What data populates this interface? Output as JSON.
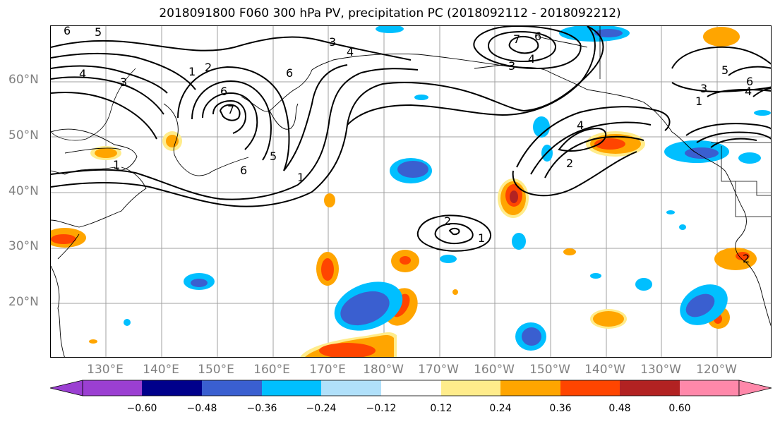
{
  "title": "2018091800 F060 300 hPa PV, precipitation PC (2018092112 - 2018092212)",
  "map": {
    "lat_labels": [
      "60°N",
      "50°N",
      "40°N",
      "30°N",
      "20°N"
    ],
    "lon_labels": [
      "130°E",
      "140°E",
      "150°E",
      "160°E",
      "170°E",
      "180°W",
      "170°W",
      "160°W",
      "150°W",
      "140°W",
      "130°W",
      "120°W"
    ],
    "pv_contour_labels": [
      "1",
      "2",
      "3",
      "4",
      "5",
      "6",
      "7"
    ],
    "gridline_color": "#a0a0a0"
  },
  "colorbar": {
    "colors": [
      "#9b3fd2",
      "#00008b",
      "#3a5fd0",
      "#00bfff",
      "#b0e0fa",
      "#ffffff",
      "#ffec8b",
      "#ffa500",
      "#ff4500",
      "#b22222",
      "#ff88aa"
    ],
    "tick_labels": [
      "−0.60",
      "−0.48",
      "−0.36",
      "−0.24",
      "−0.12",
      "0.12",
      "0.24",
      "0.36",
      "0.48",
      "0.60"
    ]
  }
}
